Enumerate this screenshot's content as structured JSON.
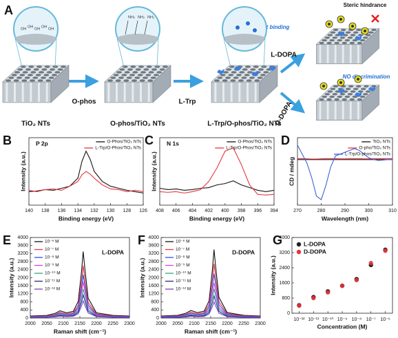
{
  "schematic": {
    "panel": "A",
    "stages": [
      "TiO₂ NTs",
      "O-phos/TiO₂ NTs",
      "L-Trp/O-phos/TiO₂ NTs"
    ],
    "steps": [
      "O-phos",
      "L-Trp"
    ],
    "branches": [
      "L-DOPA",
      "D-DOPA"
    ],
    "notes": [
      "Steric hindrance",
      "Covalent binding",
      "NO discrimination"
    ],
    "surface_groups": [
      "OH",
      "OH",
      "OH",
      "OH",
      "OH"
    ],
    "amine_groups": [
      "NH₂",
      "NH₂",
      "NH₂"
    ]
  },
  "chart_data": [
    {
      "type": "line",
      "panel": "B",
      "title": "P 2p",
      "xlabel": "Binding energy (eV)",
      "ylabel": "Intensity (a.u.)",
      "x": [
        140,
        139,
        138,
        137,
        136,
        135,
        134,
        133.5,
        133,
        132.5,
        132,
        131,
        130,
        129,
        128,
        127,
        126
      ],
      "xlim": [
        140,
        126
      ],
      "xticks": [
        140,
        138,
        136,
        134,
        132,
        130,
        128,
        126
      ],
      "ylim": [
        0,
        10
      ],
      "legend": "upper right",
      "series": [
        {
          "name": "O-Phos/TiO₂ NTs",
          "color": "#111111",
          "values": [
            2.0,
            2.1,
            2.3,
            2.2,
            2.5,
            2.8,
            4.0,
            6.5,
            8.0,
            6.8,
            5.0,
            3.5,
            2.8,
            2.5,
            2.2,
            2.0,
            1.8
          ]
        },
        {
          "name": "L-Trp/O-Phos/TiO₂ NTs",
          "color": "#e8343c",
          "values": [
            2.2,
            2.0,
            2.3,
            2.4,
            2.2,
            2.8,
            3.5,
            4.5,
            5.0,
            4.6,
            4.0,
            3.0,
            2.4,
            2.3,
            2.0,
            2.2,
            2.0
          ]
        }
      ]
    },
    {
      "type": "line",
      "panel": "C",
      "title": "N 1s",
      "xlabel": "Binding energy (eV)",
      "ylabel": "Intensity (a.u.)",
      "x": [
        408,
        407,
        406,
        405,
        404,
        403,
        402,
        401,
        400,
        399,
        398,
        397,
        396,
        395,
        394
      ],
      "xlim": [
        408,
        394
      ],
      "xticks": [
        408,
        406,
        404,
        402,
        400,
        398,
        396,
        394
      ],
      "ylim": [
        0,
        10
      ],
      "legend": "upper right",
      "series": [
        {
          "name": "O-Phos/TiO₂ NTs",
          "color": "#111111",
          "values": [
            2.5,
            2.3,
            2.4,
            2.2,
            2.3,
            2.5,
            2.6,
            3.0,
            3.2,
            3.6,
            3.0,
            2.6,
            2.2,
            2.0,
            2.2
          ]
        },
        {
          "name": "L-Trp/O-Phos/TiO₂ NTs",
          "color": "#e8343c",
          "values": [
            2.0,
            1.9,
            2.0,
            1.8,
            2.0,
            2.3,
            3.5,
            5.5,
            8.0,
            8.5,
            6.0,
            3.0,
            1.6,
            1.5,
            1.6
          ]
        }
      ]
    },
    {
      "type": "line",
      "panel": "D",
      "xlabel": "Wavelength (nm)",
      "ylabel": "CD / mdeg",
      "x": [
        270,
        272,
        274,
        276,
        278,
        280,
        282,
        284,
        286,
        288,
        290,
        292,
        294,
        296,
        298,
        300,
        302,
        304,
        306,
        308,
        310
      ],
      "xlim": [
        270,
        310
      ],
      "xticks": [
        270,
        280,
        290,
        300,
        310
      ],
      "ylim": [
        -25,
        12
      ],
      "legend": "upper right",
      "series": [
        {
          "name": "TiO₂ NTs",
          "color": "#111111",
          "values": [
            0,
            0,
            0,
            0,
            0,
            0,
            0,
            0,
            0,
            0,
            0,
            0,
            0,
            0,
            0,
            0,
            0,
            0,
            0,
            0,
            0
          ]
        },
        {
          "name": "O-pho/TiO₂ NTs",
          "color": "#e8343c",
          "values": [
            0.5,
            0.5,
            0.4,
            0.3,
            0.3,
            0.4,
            0.5,
            0.5,
            0.5,
            0.4,
            0.4,
            0.5,
            0.5,
            0.5,
            0.4,
            0.4,
            0.5,
            0.5,
            0.5,
            0.5,
            0.5
          ]
        },
        {
          "name": "L-Trp/O-phos/TiO₂ NTs",
          "color": "#3a62d6",
          "values": [
            8,
            3,
            -2,
            -10,
            -20,
            -22,
            -14,
            -4,
            2,
            3,
            4,
            5,
            6,
            5,
            3,
            1,
            0,
            -0.5,
            -0.3,
            0,
            0
          ]
        }
      ]
    },
    {
      "type": "line",
      "panel": "E",
      "title": "L-DOPA",
      "xlabel": "Raman shift (cm⁻¹)",
      "ylabel": "Intensity (a.u.)",
      "x": [
        2000,
        2050,
        2075,
        2090,
        2110,
        2130,
        2145,
        2155,
        2160,
        2165,
        2175,
        2200,
        2250,
        2300
      ],
      "xlim": [
        2000,
        2300
      ],
      "xticks": [
        2000,
        2050,
        2100,
        2150,
        2200,
        2250,
        2300
      ],
      "ylim": [
        0,
        4000
      ],
      "yticks": [
        0,
        400,
        800,
        1200,
        1600,
        2000,
        2400,
        2800,
        3200,
        3600,
        4000
      ],
      "legend": "upper left",
      "series": [
        {
          "name": "10⁻⁶ M",
          "color": "#111111",
          "values": [
            100,
            130,
            230,
            360,
            260,
            330,
            830,
            2310,
            3300,
            2480,
            990,
            260,
            130,
            100
          ]
        },
        {
          "name": "10⁻⁷ M",
          "color": "#e8343c",
          "values": [
            80,
            100,
            180,
            290,
            210,
            260,
            650,
            1820,
            2600,
            1950,
            780,
            210,
            100,
            80
          ]
        },
        {
          "name": "10⁻⁸ M",
          "color": "#2b4ef0",
          "values": [
            65,
            85,
            150,
            240,
            170,
            215,
            540,
            1500,
            2150,
            1610,
            650,
            170,
            85,
            65
          ]
        },
        {
          "name": "10⁻⁹ M",
          "color": "#e040d8",
          "values": [
            55,
            70,
            125,
            200,
            145,
            180,
            450,
            1260,
            1800,
            1350,
            540,
            145,
            70,
            55
          ]
        },
        {
          "name": "10⁻¹⁰ M",
          "color": "#2aa88a",
          "values": [
            45,
            60,
            100,
            160,
            115,
            145,
            360,
            1015,
            1450,
            1090,
            435,
            115,
            60,
            45
          ]
        },
        {
          "name": "10⁻¹¹ M",
          "color": "#1c2a8c",
          "values": [
            35,
            45,
            80,
            125,
            90,
            115,
            290,
            805,
            1150,
            865,
            345,
            90,
            45,
            35
          ]
        },
        {
          "name": "10⁻¹² M",
          "color": "#7a3cc8",
          "values": [
            25,
            35,
            60,
            95,
            70,
            85,
            215,
            595,
            850,
            640,
            255,
            70,
            35,
            25
          ]
        }
      ]
    },
    {
      "type": "line",
      "panel": "F",
      "title": "D-DOPA",
      "xlabel": "Raman shift (cm⁻¹)",
      "ylabel": "Intensity (a.u.)",
      "x": [
        2000,
        2050,
        2075,
        2090,
        2110,
        2130,
        2145,
        2155,
        2160,
        2165,
        2175,
        2200,
        2250,
        2300
      ],
      "xlim": [
        2000,
        2300
      ],
      "xticks": [
        2000,
        2050,
        2100,
        2150,
        2200,
        2250,
        2300
      ],
      "ylim": [
        0,
        4000
      ],
      "yticks": [
        0,
        400,
        800,
        1200,
        1600,
        2000,
        2400,
        2800,
        3200,
        3600,
        4000
      ],
      "legend": "upper left",
      "series": [
        {
          "name": "10⁻⁶ M",
          "color": "#111111",
          "values": [
            100,
            135,
            240,
            375,
            270,
            340,
            850,
            2380,
            3400,
            2550,
            1020,
            270,
            135,
            100
          ]
        },
        {
          "name": "10⁻⁷ M",
          "color": "#e8343c",
          "values": [
            80,
            110,
            190,
            300,
            215,
            270,
            675,
            1890,
            2700,
            2025,
            810,
            215,
            110,
            80
          ]
        },
        {
          "name": "10⁻⁸ M",
          "color": "#2b4ef0",
          "values": [
            65,
            90,
            155,
            240,
            175,
            220,
            550,
            1540,
            2200,
            1650,
            660,
            175,
            90,
            65
          ]
        },
        {
          "name": "10⁻⁹ M",
          "color": "#e040d8",
          "values": [
            55,
            70,
            125,
            190,
            140,
            175,
            440,
            1225,
            1750,
            1310,
            525,
            140,
            70,
            55
          ]
        },
        {
          "name": "10⁻¹⁰ M",
          "color": "#2aa88a",
          "values": [
            45,
            60,
            100,
            160,
            115,
            145,
            360,
            1015,
            1450,
            1090,
            435,
            115,
            60,
            45
          ]
        },
        {
          "name": "10⁻¹¹ M",
          "color": "#1c2a8c",
          "values": [
            35,
            45,
            75,
            120,
            90,
            110,
            275,
            770,
            1100,
            825,
            330,
            90,
            45,
            35
          ]
        },
        {
          "name": "10⁻¹² M",
          "color": "#7a3cc8",
          "values": [
            25,
            30,
            55,
            90,
            65,
            80,
            200,
            560,
            800,
            600,
            240,
            65,
            30,
            25
          ]
        }
      ]
    },
    {
      "type": "scatter",
      "panel": "G",
      "xlabel": "Concentration (M)",
      "ylabel": "Intensity (a.u.)",
      "categories": [
        "10⁻¹²",
        "10⁻¹¹",
        "10⁻¹⁰",
        "10⁻⁹",
        "10⁻⁸",
        "10⁻⁷",
        "10⁻⁶"
      ],
      "ylim": [
        0,
        4000
      ],
      "yticks": [
        0,
        800,
        1600,
        2400,
        3200,
        4000
      ],
      "legend": "upper left",
      "series": [
        {
          "name": "L-DOPA",
          "color": "#222222",
          "values": [
            420,
            850,
            1150,
            1450,
            1800,
            2550,
            3350
          ],
          "errors": [
            90,
            90,
            100,
            90,
            100,
            110,
            110
          ]
        },
        {
          "name": "D-DOPA",
          "color": "#e8343c",
          "values": [
            400,
            800,
            1100,
            1450,
            1750,
            2650,
            3300
          ],
          "errors": [
            90,
            90,
            100,
            90,
            100,
            110,
            110
          ]
        }
      ]
    }
  ]
}
